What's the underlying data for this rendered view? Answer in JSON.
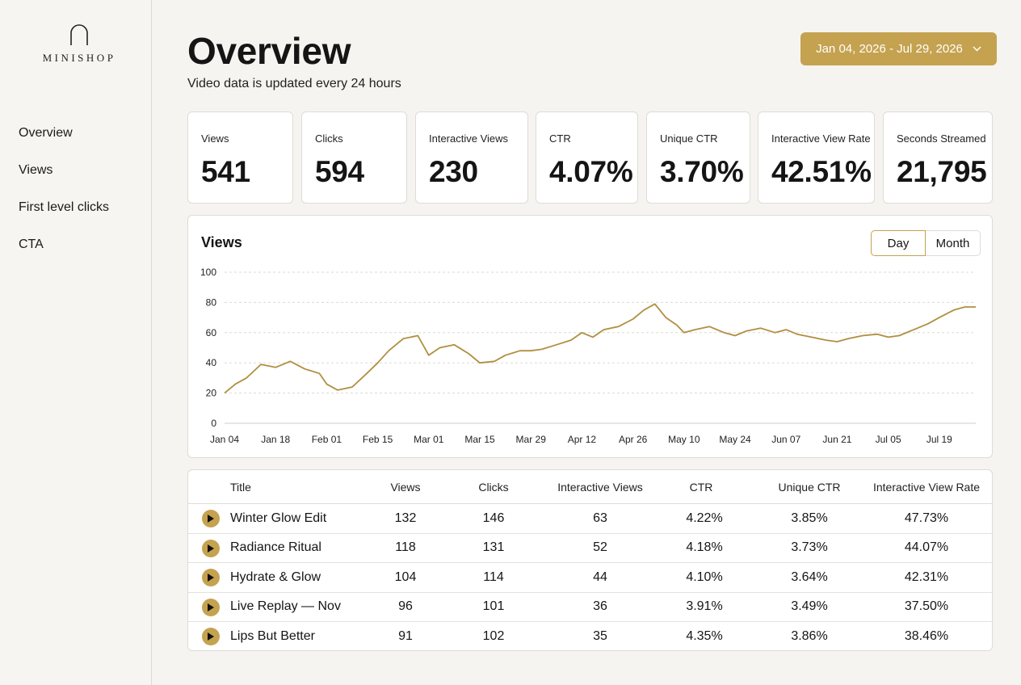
{
  "brand": {
    "name": "MINISHOP"
  },
  "sidebar": {
    "items": [
      {
        "label": "Overview"
      },
      {
        "label": "Views"
      },
      {
        "label": "First level clicks"
      },
      {
        "label": "CTA"
      }
    ]
  },
  "header": {
    "title": "Overview",
    "subtitle": "Video data is updated every 24 hours",
    "date_range": "Jan 04, 2026 - Jul 29, 2026"
  },
  "kpis": [
    {
      "label": "Views",
      "value": "541"
    },
    {
      "label": "Clicks",
      "value": "594"
    },
    {
      "label": "Interactive Views",
      "value": "230"
    },
    {
      "label": "CTR",
      "value": "4.07%"
    },
    {
      "label": "Unique CTR",
      "value": "3.70%"
    },
    {
      "label": "Interactive View Rate",
      "value": "42.51%"
    },
    {
      "label": "Seconds Streamed",
      "value": "21,795"
    }
  ],
  "chart_card": {
    "title": "Views",
    "toggle": {
      "day": "Day",
      "month": "Month",
      "selected": "Day"
    }
  },
  "chart_data": {
    "type": "line",
    "title": "Views",
    "color": "#b08f3f",
    "ylim": [
      0,
      100
    ],
    "y_ticks": [
      0,
      20,
      40,
      60,
      80,
      100
    ],
    "x_tick_labels": [
      "Jan 04",
      "Jan 18",
      "Feb 01",
      "Feb 15",
      "Mar 01",
      "Mar 15",
      "Mar 29",
      "Apr 12",
      "Apr 26",
      "May 10",
      "May 24",
      "Jun 07",
      "Jun 21",
      "Jul 05",
      "Jul 19"
    ],
    "grid": true,
    "series": [
      {
        "x_dates": [
          "Jan 04",
          "Jan 07",
          "Jan 10",
          "Jan 14",
          "Jan 18",
          "Jan 22",
          "Jan 26",
          "Jan 30",
          "Feb 01",
          "Feb 04",
          "Feb 08",
          "Feb 12",
          "Feb 15",
          "Feb 18",
          "Feb 22",
          "Feb 26",
          "Mar 01",
          "Mar 04",
          "Mar 08",
          "Mar 12",
          "Mar 15",
          "Mar 19",
          "Mar 22",
          "Mar 26",
          "Mar 29",
          "Apr 01",
          "Apr 05",
          "Apr 09",
          "Apr 12",
          "Apr 15",
          "Apr 18",
          "Apr 22",
          "Apr 26",
          "Apr 29",
          "May 02",
          "May 05",
          "May 08",
          "May 10",
          "May 13",
          "May 17",
          "May 21",
          "May 24",
          "May 27",
          "May 31",
          "Jun 04",
          "Jun 07",
          "Jun 10",
          "Jun 14",
          "Jun 18",
          "Jun 21",
          "Jun 24",
          "Jun 28",
          "Jul 02",
          "Jul 05",
          "Jul 08",
          "Jul 12",
          "Jul 16",
          "Jul 19",
          "Jul 23",
          "Jul 26",
          "Jul 29"
        ],
        "values": [
          20,
          26,
          30,
          39,
          37,
          41,
          36,
          33,
          26,
          22,
          24,
          33,
          40,
          48,
          56,
          58,
          45,
          50,
          52,
          46,
          40,
          41,
          45,
          48,
          48,
          49,
          52,
          55,
          60,
          57,
          62,
          64,
          69,
          75,
          79,
          70,
          65,
          60,
          62,
          64,
          60,
          58,
          61,
          63,
          60,
          62,
          59,
          57,
          55,
          54,
          56,
          58,
          59,
          57,
          58,
          62,
          66,
          70,
          75,
          77,
          77
        ]
      }
    ]
  },
  "table": {
    "headers": [
      "Title",
      "Views",
      "Clicks",
      "Interactive Views",
      "CTR",
      "Unique CTR",
      "Interactive View Rate"
    ],
    "rows": [
      [
        "Winter Glow Edit",
        "132",
        "146",
        "63",
        "4.22%",
        "3.85%",
        "47.73%"
      ],
      [
        "Radiance Ritual",
        "118",
        "131",
        "52",
        "4.18%",
        "3.73%",
        "44.07%"
      ],
      [
        "Hydrate & Glow",
        "104",
        "114",
        "44",
        "4.10%",
        "3.64%",
        "42.31%"
      ],
      [
        "Live Replay — Nov",
        "96",
        "101",
        "36",
        "3.91%",
        "3.49%",
        "37.50%"
      ],
      [
        "Lips But Better",
        "91",
        "102",
        "35",
        "4.35%",
        "3.86%",
        "38.46%"
      ]
    ]
  },
  "colors": {
    "accent": "#c4a24f",
    "line": "#b08f3f",
    "background": "#f5f4f0",
    "card": "#ffffff"
  },
  "icons": {
    "logo": "arch-logo-icon",
    "date_dropdown": "chevron-down-icon",
    "row_play": "play-icon"
  }
}
